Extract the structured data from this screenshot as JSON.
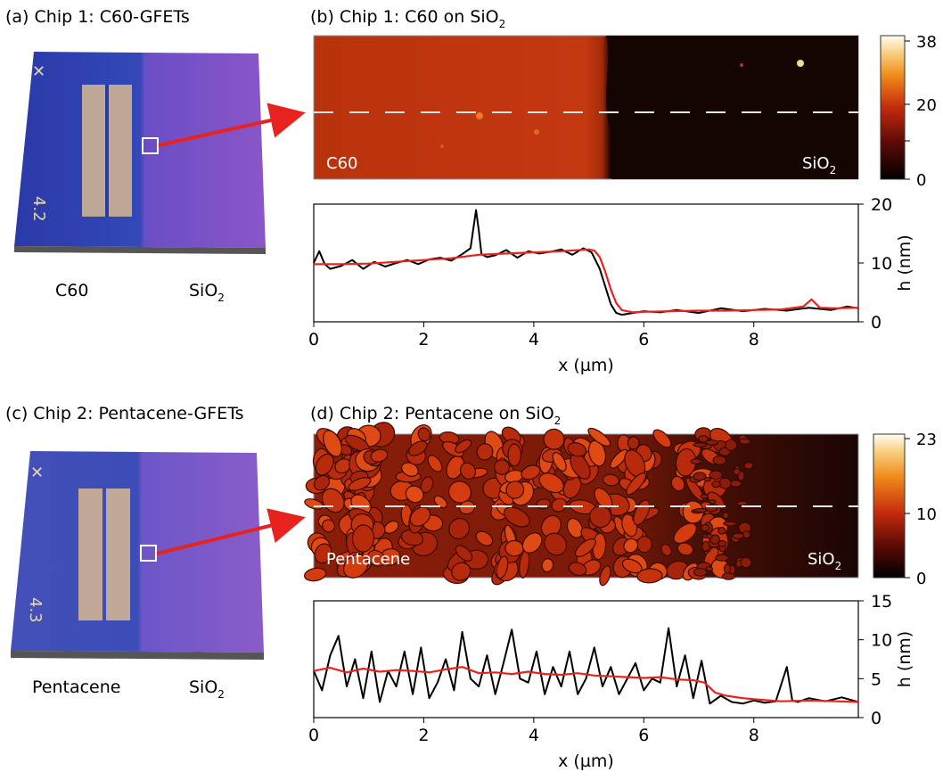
{
  "panels": {
    "a": {
      "title": "(a) Chip 1: C60-GFETs",
      "chip_id": "4.2",
      "left_label": "C60",
      "right_label_main": "SiO",
      "right_label_sub": "2"
    },
    "b": {
      "title_main": "(b) Chip 1: C60 on SiO",
      "title_sub": "2",
      "left_overlay": "C60",
      "right_overlay_main": "SiO",
      "right_overlay_sub": "2",
      "colorbar_ticks": [
        "38",
        "20",
        "0"
      ],
      "colorbar_range": [
        0,
        38
      ]
    },
    "c": {
      "title": "(c) Chip 2: Pentacene-GFETs",
      "chip_id": "4.3",
      "left_label": "Pentacene",
      "right_label_main": "SiO",
      "right_label_sub": "2"
    },
    "d": {
      "title_main": "(d) Chip 2: Pentacene on SiO",
      "title_sub": "2",
      "left_overlay": "Pentacene",
      "right_overlay_main": "SiO",
      "right_overlay_sub": "2",
      "colorbar_ticks": [
        "23",
        "10",
        "0"
      ],
      "colorbar_range": [
        0,
        23
      ]
    }
  },
  "colors": {
    "measured": "#000000",
    "smoothed": "#e8231f",
    "arrow": "#e8231f",
    "chip_blue": "#2d3fb0",
    "chip_purple": "#7a4fc8"
  },
  "chart_data": [
    {
      "type": "line",
      "panel": "b",
      "xlabel": "x  (µm)",
      "ylabel": "h  (nm)",
      "xlim": [
        0,
        9.9
      ],
      "ylim": [
        0,
        20
      ],
      "xticks": [
        "0",
        "2",
        "4",
        "6",
        "8"
      ],
      "yticks": [
        "0",
        "10",
        "20"
      ],
      "grid": false,
      "series": [
        {
          "color": "#000000",
          "x": [
            0,
            0.1,
            0.2,
            0.3,
            0.5,
            0.7,
            0.9,
            1.1,
            1.3,
            1.5,
            1.7,
            1.9,
            2.1,
            2.3,
            2.5,
            2.7,
            2.85,
            2.95,
            3.0,
            3.05,
            3.15,
            3.3,
            3.5,
            3.7,
            3.9,
            4.1,
            4.3,
            4.5,
            4.7,
            4.9,
            5.05,
            5.2,
            5.3,
            5.4,
            5.5,
            5.6,
            5.8,
            6.0,
            6.3,
            6.6,
            7.0,
            7.4,
            7.8,
            8.2,
            8.6,
            9.0,
            9.4,
            9.7,
            9.9
          ],
          "y": [
            10,
            12,
            9.8,
            9.0,
            9.5,
            10.5,
            9.0,
            10.2,
            9.4,
            10.0,
            10.5,
            9.8,
            10.6,
            10.9,
            10.4,
            11.5,
            12.5,
            19.0,
            15.5,
            11.5,
            11.0,
            11.3,
            12.2,
            10.9,
            12.0,
            11.6,
            11.9,
            12.3,
            11.4,
            12.5,
            11.8,
            9.0,
            6.0,
            3.0,
            1.5,
            1.2,
            1.5,
            1.8,
            1.6,
            2.0,
            1.5,
            2.3,
            1.8,
            2.2,
            1.9,
            2.4,
            2.0,
            2.6,
            2.3
          ]
        },
        {
          "color": "#e8231f",
          "x": [
            0,
            0.5,
            1.0,
            1.5,
            2.0,
            2.5,
            3.0,
            3.5,
            4.0,
            4.5,
            5.0,
            5.1,
            5.2,
            5.3,
            5.4,
            5.5,
            5.6,
            5.8,
            6.0,
            6.5,
            7.0,
            7.5,
            8.0,
            8.5,
            8.9,
            9.05,
            9.2,
            9.5,
            9.9
          ],
          "y": [
            9.8,
            9.8,
            9.9,
            10.2,
            10.5,
            10.8,
            11.4,
            11.6,
            11.8,
            12.0,
            12.3,
            12.1,
            11.0,
            8.5,
            5.5,
            3.2,
            2.0,
            1.6,
            1.7,
            1.8,
            1.9,
            1.9,
            2.0,
            2.1,
            2.6,
            3.8,
            2.4,
            2.3,
            2.4
          ]
        }
      ]
    },
    {
      "type": "line",
      "panel": "d",
      "xlabel": "x  (µm)",
      "ylabel": "h  (nm)",
      "xlim": [
        0,
        9.9
      ],
      "ylim": [
        0,
        15
      ],
      "xticks": [
        "0",
        "2",
        "4",
        "6",
        "8"
      ],
      "yticks": [
        "0",
        "5",
        "10",
        "15"
      ],
      "grid": false,
      "series": [
        {
          "color": "#000000",
          "x": [
            0,
            0.15,
            0.3,
            0.45,
            0.6,
            0.75,
            0.9,
            1.05,
            1.2,
            1.35,
            1.5,
            1.65,
            1.8,
            1.95,
            2.1,
            2.25,
            2.4,
            2.55,
            2.7,
            2.85,
            3.0,
            3.15,
            3.3,
            3.45,
            3.6,
            3.75,
            3.9,
            4.05,
            4.2,
            4.35,
            4.5,
            4.65,
            4.8,
            4.95,
            5.1,
            5.25,
            5.4,
            5.55,
            5.7,
            5.85,
            6.0,
            6.15,
            6.3,
            6.45,
            6.6,
            6.75,
            6.9,
            7.05,
            7.2,
            7.4,
            7.6,
            7.8,
            8.0,
            8.2,
            8.4,
            8.6,
            8.7,
            8.8,
            9.0,
            9.3,
            9.6,
            9.9
          ],
          "y": [
            6,
            3.5,
            8,
            10.5,
            4,
            7.5,
            2.5,
            8.5,
            2,
            6,
            4,
            8.5,
            3,
            9,
            2.5,
            4.5,
            7.5,
            3.5,
            11,
            5,
            4,
            8,
            3,
            7,
            11.3,
            5,
            4.5,
            8.5,
            3,
            6.5,
            4,
            8.5,
            3,
            5,
            9,
            4,
            6.5,
            3,
            5,
            7,
            3.5,
            5,
            4.5,
            11.5,
            4,
            8,
            2.5,
            7.3,
            1.8,
            2.8,
            2,
            1.8,
            2.2,
            1.9,
            2.1,
            6.5,
            2.2,
            2.0,
            2.5,
            2.1,
            2.6,
            2.0
          ]
        },
        {
          "color": "#e8231f",
          "x": [
            0,
            0.3,
            0.6,
            0.9,
            1.2,
            1.5,
            1.8,
            2.1,
            2.4,
            2.7,
            3.0,
            3.3,
            3.6,
            3.9,
            4.2,
            4.5,
            4.8,
            5.1,
            5.4,
            5.7,
            6.0,
            6.3,
            6.6,
            6.9,
            7.1,
            7.3,
            7.5,
            7.8,
            8.1,
            8.5,
            9.0,
            9.5,
            9.9
          ],
          "y": [
            6,
            6.4,
            5.8,
            6.3,
            5.9,
            6.1,
            6.0,
            5.8,
            6.2,
            6.5,
            5.7,
            5.8,
            5.6,
            5.9,
            5.6,
            5.5,
            5.7,
            5.4,
            5.3,
            5.2,
            5.1,
            5.2,
            4.9,
            4.8,
            4.5,
            3.2,
            2.8,
            2.5,
            2.3,
            2.1,
            2.2,
            2.1,
            2.0
          ]
        }
      ]
    }
  ]
}
